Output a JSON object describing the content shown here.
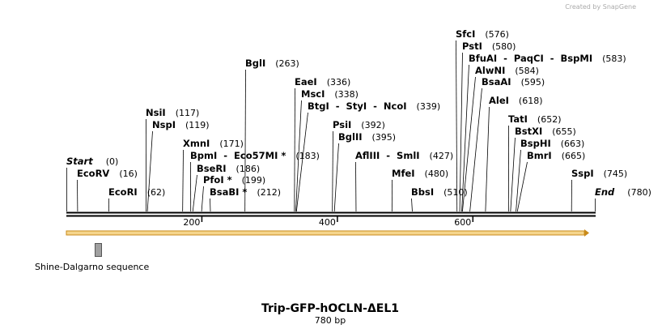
{
  "credit": "Created by SnapGene",
  "title": "Trip-GFP-hOCLN-ΔEL1",
  "length_label": "780 bp",
  "ticks": [
    200,
    400,
    600
  ],
  "feature": "Shine-Dalgarno sequence",
  "sites": [
    {
      "name": "Start",
      "pos": {
        "value": 0,
        "label": "(0)"
      }
    },
    {
      "name": "EcoRV",
      "pos": {
        "value": 16,
        "label": "(16)"
      }
    },
    {
      "name": "EcoRI",
      "pos": {
        "value": 62,
        "label": "(62)"
      }
    },
    {
      "name": "NsiI",
      "pos": {
        "value": 117,
        "label": "(117)"
      }
    },
    {
      "name": "NspI",
      "pos": {
        "value": 119,
        "label": "(119)"
      }
    },
    {
      "name": "XmnI",
      "pos": {
        "value": 171,
        "label": "(171)"
      }
    },
    {
      "name": "BpmI  -  Eco57MI *",
      "pos": {
        "value": 183,
        "label": "(183)"
      }
    },
    {
      "name": "BseRI",
      "pos": {
        "value": 186,
        "label": "(186)"
      }
    },
    {
      "name": "PfoI *",
      "pos": {
        "value": 199,
        "label": "(199)"
      }
    },
    {
      "name": "BsaBI *",
      "pos": {
        "value": 212,
        "label": "(212)"
      }
    },
    {
      "name": "BglI",
      "pos": {
        "value": 263,
        "label": "(263)"
      }
    },
    {
      "name": "EaeI",
      "pos": {
        "value": 336,
        "label": "(336)"
      }
    },
    {
      "name": "MscI",
      "pos": {
        "value": 338,
        "label": "(338)"
      }
    },
    {
      "name": "BtgI  -  StyI  -  NcoI",
      "pos": {
        "value": 339,
        "label": "(339)"
      }
    },
    {
      "name": "PsiI",
      "pos": {
        "value": 392,
        "label": "(392)"
      }
    },
    {
      "name": "BglII",
      "pos": {
        "value": 395,
        "label": "(395)"
      }
    },
    {
      "name": "AflIII  -  SmlI",
      "pos": {
        "value": 427,
        "label": "(427)"
      }
    },
    {
      "name": "MfeI",
      "pos": {
        "value": 480,
        "label": "(480)"
      }
    },
    {
      "name": "BbsI",
      "pos": {
        "value": 510,
        "label": "(510)"
      }
    },
    {
      "name": "SfcI",
      "pos": {
        "value": 576,
        "label": "(576)"
      }
    },
    {
      "name": "PstI",
      "pos": {
        "value": 580,
        "label": "(580)"
      }
    },
    {
      "name": "BfuAI  -  PaqCI  -  BspMI",
      "pos": {
        "value": 583,
        "label": "(583)"
      }
    },
    {
      "name": "AlwNI",
      "pos": {
        "value": 584,
        "label": "(584)"
      }
    },
    {
      "name": "BsaAI",
      "pos": {
        "value": 595,
        "label": "(595)"
      }
    },
    {
      "name": "AleI",
      "pos": {
        "value": 618,
        "label": "(618)"
      }
    },
    {
      "name": "TatI",
      "pos": {
        "value": 652,
        "label": "(652)"
      }
    },
    {
      "name": "BstXI",
      "pos": {
        "value": 655,
        "label": "(655)"
      }
    },
    {
      "name": "BspHI",
      "pos": {
        "value": 663,
        "label": "(663)"
      }
    },
    {
      "name": "BmrI",
      "pos": {
        "value": 665,
        "label": "(665)"
      }
    },
    {
      "name": "SspI",
      "pos": {
        "value": 745,
        "label": "(745)"
      }
    },
    {
      "name": "End",
      "pos": {
        "value": 780,
        "label": "(780)"
      }
    }
  ]
}
